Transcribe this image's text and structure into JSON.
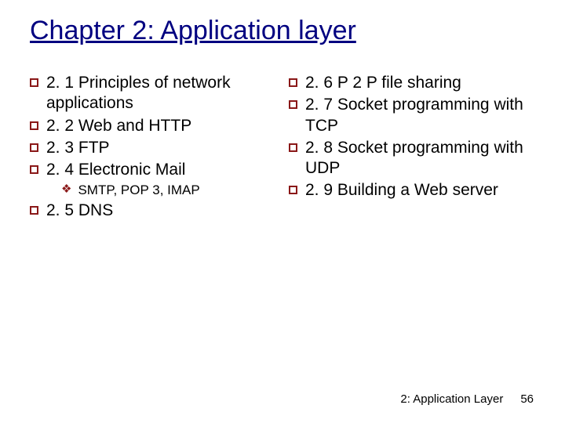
{
  "title": "Chapter 2: Application layer",
  "left": {
    "items": [
      {
        "text": "2. 1 Principles of network applications"
      },
      {
        "text": "2. 2 Web and HTTP"
      },
      {
        "text": "2. 3 FTP"
      },
      {
        "text": "2. 4 Electronic Mail",
        "sub": [
          "SMTP, POP 3, IMAP"
        ]
      },
      {
        "text": "2. 5 DNS"
      }
    ]
  },
  "right": {
    "items": [
      {
        "text": "2. 6 P 2 P file sharing"
      },
      {
        "text": "2. 7 Socket programming with TCP"
      },
      {
        "text": "2. 8 Socket programming with UDP"
      },
      {
        "text": "2. 9 Building a Web server"
      }
    ]
  },
  "footer": {
    "label": "2: Application Layer",
    "page": "56"
  },
  "colors": {
    "title": "#000080",
    "bullet_border": "#8a1818",
    "text": "#000000",
    "background": "#ffffff"
  }
}
